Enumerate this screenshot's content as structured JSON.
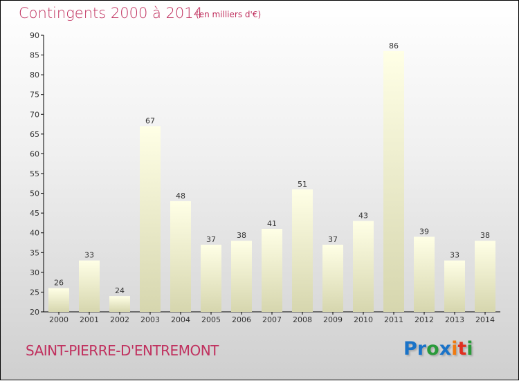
{
  "chart_data": {
    "type": "bar",
    "title": "Contingents 2000 à 2014",
    "subtitle": "(en milliers d'€)",
    "categories": [
      "2000",
      "2001",
      "2002",
      "2003",
      "2004",
      "2005",
      "2006",
      "2007",
      "2008",
      "2009",
      "2010",
      "2011",
      "2012",
      "2013",
      "2014"
    ],
    "values": [
      26,
      33,
      24,
      67,
      48,
      37,
      38,
      41,
      51,
      37,
      43,
      86,
      39,
      33,
      38
    ],
    "ylim": [
      20,
      90
    ],
    "yticks": [
      20,
      25,
      30,
      35,
      40,
      45,
      50,
      55,
      60,
      65,
      70,
      75,
      80,
      85,
      90
    ],
    "xlabel": "",
    "ylabel": "",
    "grid": false
  },
  "place": "SAINT-PIERRE-D'ENTREMONT",
  "logo": "Proxiti",
  "colors": {
    "title": "#c0305e",
    "bar_top": "#ffffe8",
    "bar_bottom": "#d8d8b0"
  }
}
